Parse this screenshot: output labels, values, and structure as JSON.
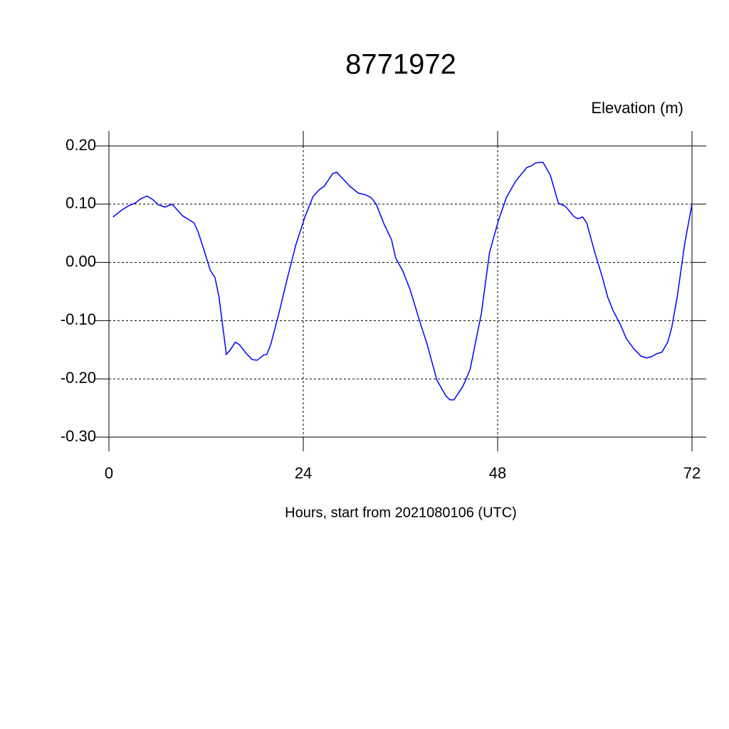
{
  "chart_data": {
    "type": "line",
    "title": "8771972",
    "subtitle": "Elevation (m)",
    "x_label": "Hours, start from 2021080106 (UTC)",
    "x": [
      0.5,
      1.5,
      2.4,
      3.25,
      3.9,
      4.7,
      5.4,
      6.1,
      6.9,
      7.8,
      9.1,
      10.5,
      11,
      11.7,
      12.5,
      13.1,
      13.6,
      14.5,
      15,
      15.6,
      16.1,
      17,
      17.7,
      18.3,
      19.1,
      19.5,
      20,
      21,
      22,
      23.1,
      24.2,
      25.2,
      25.9,
      26.6,
      27.6,
      28.1,
      28.8,
      29.8,
      30.8,
      31.7,
      32.4,
      33,
      34,
      34.9,
      35.4,
      36.3,
      37.2,
      38.4,
      39.3,
      40.5,
      41.6,
      42.1,
      42.6,
      43.7,
      44.6,
      46,
      47,
      48.1,
      49.1,
      50.2,
      51.6,
      52.2,
      52.7,
      53.6,
      54.5,
      55.5,
      56.4,
      57.4,
      57.9,
      58.5,
      59,
      60,
      60.9,
      61.6,
      62.3,
      63.2,
      63.9,
      64.8,
      65.7,
      66.4,
      67,
      67.6,
      68.3,
      69,
      69.5,
      70.2,
      71.1,
      72
    ],
    "series": [
      {
        "name": "Elevation",
        "color": "#0000ff",
        "values": [
          0.078,
          0.089,
          0.097,
          0.102,
          0.109,
          0.114,
          0.108,
          0.099,
          0.095,
          0.1,
          0.08,
          0.068,
          0.053,
          0.023,
          -0.013,
          -0.026,
          -0.06,
          -0.158,
          -0.15,
          -0.137,
          -0.141,
          -0.157,
          -0.167,
          -0.168,
          -0.159,
          -0.158,
          -0.14,
          -0.087,
          -0.029,
          0.031,
          0.078,
          0.113,
          0.124,
          0.131,
          0.152,
          0.155,
          0.145,
          0.13,
          0.119,
          0.116,
          0.111,
          0.1,
          0.065,
          0.039,
          0.008,
          -0.015,
          -0.047,
          -0.102,
          -0.141,
          -0.202,
          -0.229,
          -0.236,
          -0.236,
          -0.213,
          -0.184,
          -0.087,
          0.017,
          0.072,
          0.112,
          0.139,
          0.163,
          0.166,
          0.171,
          0.172,
          0.15,
          0.102,
          0.096,
          0.079,
          0.075,
          0.078,
          0.068,
          0.017,
          -0.024,
          -0.06,
          -0.084,
          -0.108,
          -0.131,
          -0.148,
          -0.161,
          -0.164,
          -0.162,
          -0.157,
          -0.154,
          -0.137,
          -0.112,
          -0.057,
          0.032,
          0.1
        ]
      }
    ],
    "xlim": [
      0,
      72
    ],
    "xticks": [
      0,
      24,
      48,
      72
    ],
    "ylim": [
      -0.3,
      0.2
    ],
    "yticks": [
      {
        "value": -0.3,
        "label": "-0.30"
      },
      {
        "value": -0.2,
        "label": "-0.20"
      },
      {
        "value": -0.1,
        "label": "-0.10"
      },
      {
        "value": 0,
        "label": "0.00"
      },
      {
        "value": 0.1,
        "label": "0.10"
      },
      {
        "value": 0.2,
        "label": "0.20"
      }
    ],
    "grid": true
  }
}
